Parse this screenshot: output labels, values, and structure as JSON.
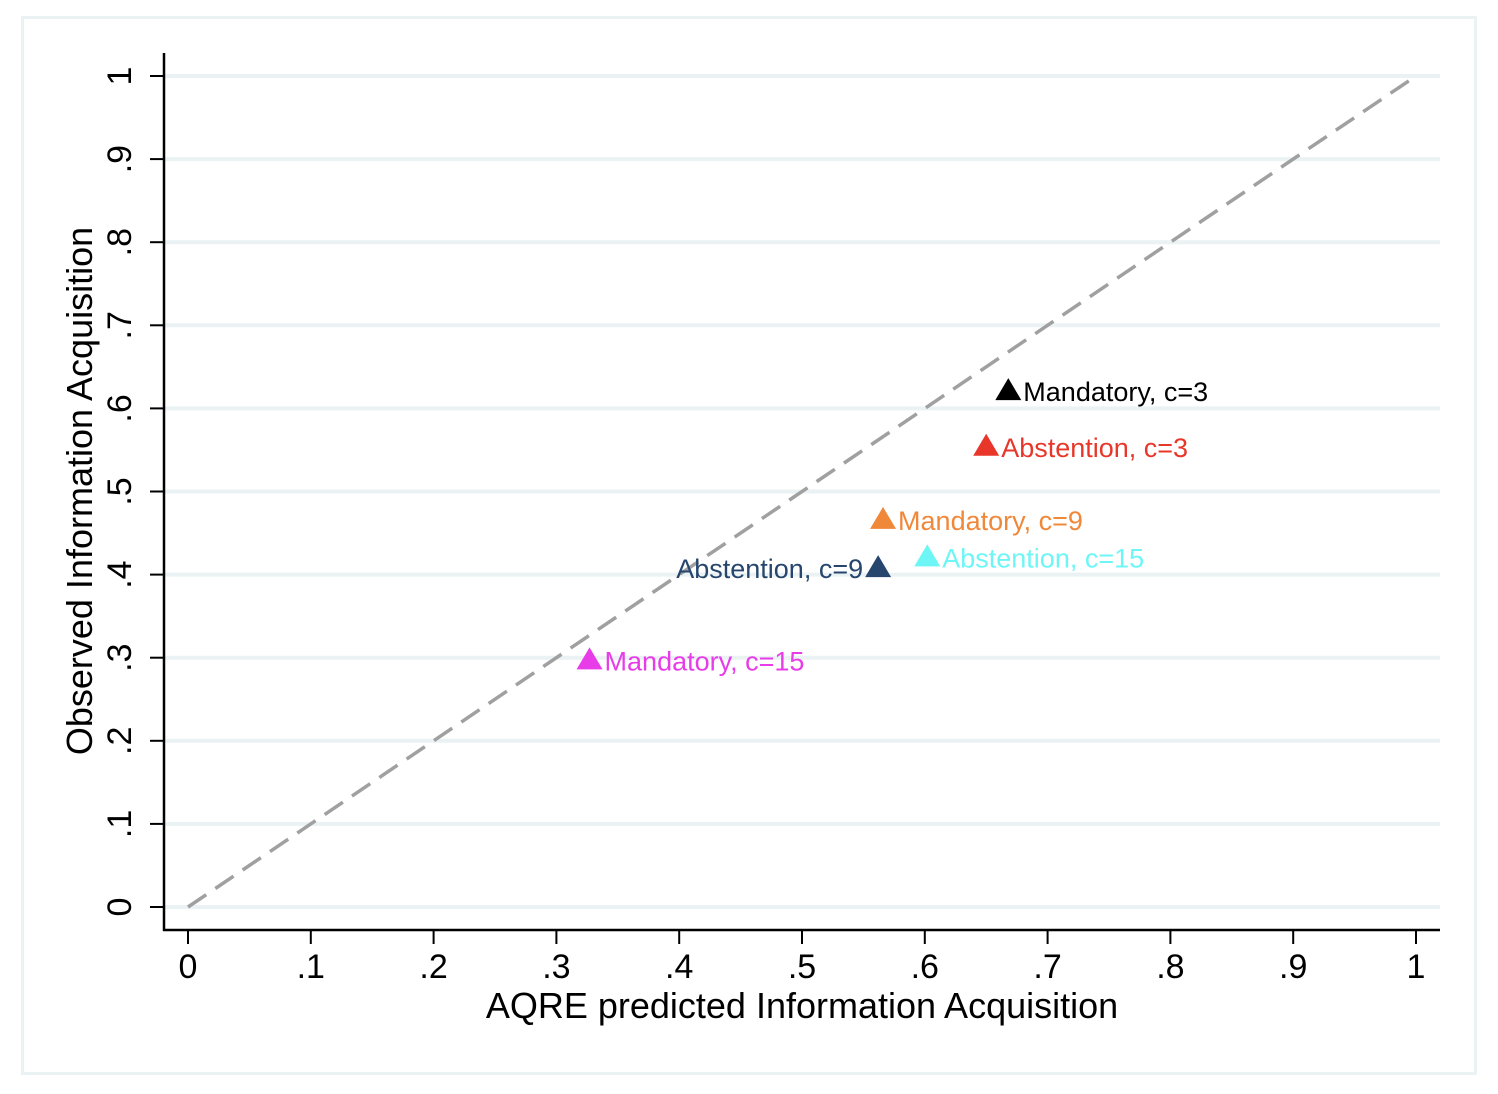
{
  "chart_data": {
    "type": "scatter",
    "title": "",
    "xlabel": "AQRE predicted Information Acquisition",
    "ylabel": "Observed Information Acquisition",
    "xlim": [
      0,
      1
    ],
    "ylim": [
      0,
      1
    ],
    "x_ticks": [
      0,
      0.1,
      0.2,
      0.3,
      0.4,
      0.5,
      0.6,
      0.7,
      0.8,
      0.9,
      1
    ],
    "x_tick_labels": [
      "0",
      ".1",
      ".2",
      ".3",
      ".4",
      ".5",
      ".6",
      ".7",
      ".8",
      ".9",
      "1"
    ],
    "y_ticks": [
      0,
      0.1,
      0.2,
      0.3,
      0.4,
      0.5,
      0.6,
      0.7,
      0.8,
      0.9,
      1
    ],
    "y_tick_labels": [
      "0",
      ".1",
      ".2",
      ".3",
      ".4",
      ".5",
      ".6",
      ".7",
      ".8",
      ".9",
      "1"
    ],
    "grid": "horizontal",
    "reference_line": {
      "type": "45-degree",
      "style": "dashed",
      "color": "#a0a0a0"
    },
    "marker": "triangle",
    "points": [
      {
        "label": "Mandatory, c=3",
        "x": 0.668,
        "y": 0.622,
        "color": "#000000"
      },
      {
        "label": "Abstention, c=3",
        "x": 0.65,
        "y": 0.555,
        "color": "#e8372a"
      },
      {
        "label": "Mandatory, c=9",
        "x": 0.566,
        "y": 0.467,
        "color": "#f0883a"
      },
      {
        "label": "Abstention, c=15",
        "x": 0.602,
        "y": 0.422,
        "color": "#6ef6f6"
      },
      {
        "label": "Abstention, c=9",
        "x": 0.562,
        "y": 0.409,
        "color": "#27466e"
      },
      {
        "label": "Mandatory, c=15",
        "x": 0.327,
        "y": 0.298,
        "color": "#e73ce8"
      }
    ]
  }
}
